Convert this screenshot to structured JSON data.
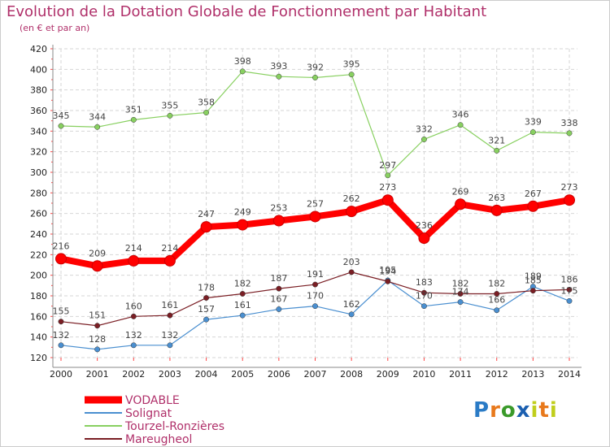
{
  "title": "Evolution de la Dotation Globale de Fonctionnement par Habitant",
  "subtitle": "(en € et par an)",
  "logo": {
    "letters": [
      "P",
      "r",
      "o",
      "x",
      "i",
      "t",
      "i"
    ],
    "colors": [
      "#2a7bc6",
      "#e8791c",
      "#3a9a2a",
      "#1b5fb0",
      "#c0ce1c",
      "#e8791c",
      "#c0ce1c"
    ]
  },
  "chart_data": {
    "type": "line",
    "title": "Evolution de la Dotation Globale de Fonctionnement par Habitant",
    "subtitle": "(en € et par an)",
    "x": [
      "2000",
      "2001",
      "2002",
      "2003",
      "2004",
      "2005",
      "2006",
      "2007",
      "2008",
      "2009",
      "2010",
      "2011",
      "2012",
      "2013",
      "2014"
    ],
    "ylim": [
      120,
      420
    ],
    "yticks": [
      "120",
      "140",
      "160",
      "180",
      "200",
      "220",
      "240",
      "260",
      "280",
      "300",
      "320",
      "340",
      "360",
      "380",
      "400",
      "420"
    ],
    "grid": true,
    "legend_position": "bottom-left",
    "series": [
      {
        "name": "VODABLE",
        "color": "#ff0000",
        "values": [
          216,
          209,
          214,
          214,
          247,
          249,
          253,
          257,
          262,
          273,
          236,
          269,
          263,
          267,
          273
        ]
      },
      {
        "name": "Solignat",
        "color": "#4a8fd0",
        "values": [
          132,
          128,
          132,
          132,
          157,
          161,
          167,
          170,
          162,
          195,
          170,
          174,
          166,
          189,
          175
        ]
      },
      {
        "name": "Tourzel-Ronzières",
        "color": "#88d060",
        "values": [
          345,
          344,
          351,
          355,
          358,
          398,
          393,
          392,
          395,
          297,
          332,
          346,
          321,
          339,
          338
        ]
      },
      {
        "name": "Mareugheol",
        "color": "#7a1e24",
        "values": [
          155,
          151,
          160,
          161,
          178,
          182,
          187,
          191,
          203,
          194,
          183,
          182,
          182,
          185,
          186
        ]
      }
    ]
  }
}
